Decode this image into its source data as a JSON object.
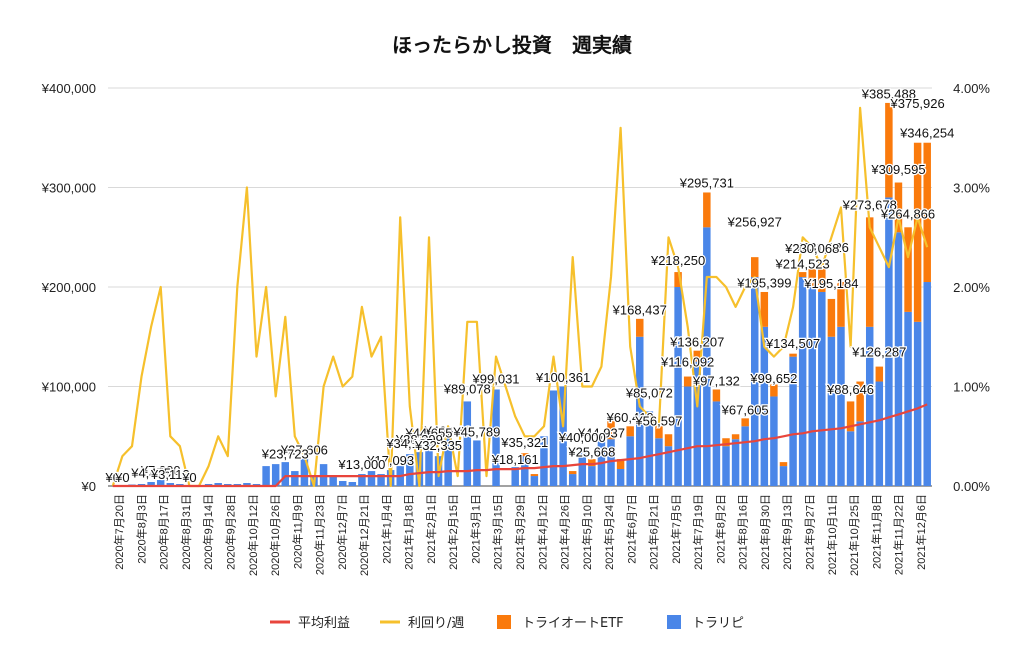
{
  "chart_data": {
    "type": "bar",
    "stacked": true,
    "title": "ほったらかし投資　週実績",
    "xlabel": "",
    "ylabel": "",
    "ylim": [
      0,
      400000
    ],
    "y2lim": [
      0,
      4.0
    ],
    "y_ticks": [
      "¥0",
      "¥100,000",
      "¥200,000",
      "¥300,000",
      "¥400,000"
    ],
    "y2_ticks": [
      "0.00%",
      "1.00%",
      "2.00%",
      "3.00%",
      "4.00%"
    ],
    "grid": true,
    "legend_position": "bottom",
    "legend": [
      {
        "name": "平均利益",
        "color": "#e8453c",
        "kind": "line"
      },
      {
        "name": "利回り/週",
        "color": "#f6c02c",
        "kind": "line"
      },
      {
        "name": "トライオートETF",
        "color": "#fa7a0c",
        "kind": "bar"
      },
      {
        "name": "トラリピ",
        "color": "#4a86e8",
        "kind": "bar"
      }
    ],
    "x_tick_labels": [
      "2020年7月20日",
      "2020年8月3日",
      "2020年8月17日",
      "2020年8月31日",
      "2020年9月14日",
      "2020年9月28日",
      "2020年10月12日",
      "2020年10月26日",
      "2020年11月9日",
      "2020年11月23日",
      "2020年12月7日",
      "2020年12月21日",
      "2021年1月4日",
      "2021年1月18日",
      "2021年2月1日",
      "2021年2月15日",
      "2021年3月1日",
      "2021年3月15日",
      "2021年3月29日",
      "2021年4月12日",
      "2021年4月26日",
      "2021年5月10日",
      "2021年5月24日",
      "2021年6月7日",
      "2021年6月21日",
      "2021年7月5日",
      "2021年7月19日",
      "2021年8月2日",
      "2021年8月16日",
      "2021年8月30日",
      "2021年9月13日",
      "2021年9月27日",
      "2021年10月11日",
      "2021年10月25日",
      "2021年11月8日",
      "2021年11月22日",
      "2021年12月6日"
    ],
    "series": [
      {
        "name": "トラリピ",
        "values": [
          0,
          0,
          1500,
          2000,
          4000,
          6000,
          3000,
          2000,
          0,
          1000,
          2000,
          3000,
          2000,
          2000,
          3000,
          2000,
          20000,
          22000,
          24000,
          15000,
          28000,
          10000,
          22000,
          10000,
          5000,
          4000,
          12000,
          15000,
          12000,
          16000,
          20000,
          32000,
          34000,
          44000,
          30000,
          48000,
          0,
          85000,
          45789,
          0,
          97000,
          0,
          19000,
          30000,
          10000,
          50000,
          96000,
          100000,
          12000,
          35000,
          20000,
          44655,
          47000,
          17093,
          50000,
          150000,
          75000,
          48000,
          40000,
          200000,
          100000,
          125000,
          260000,
          85000,
          40000,
          47000,
          60000,
          210000,
          160000,
          90000,
          20000,
          130000,
          210000,
          200000,
          195000,
          150000,
          160000,
          55000,
          65000,
          160000,
          105000,
          290000,
          255000,
          175000,
          165000,
          205000
        ]
      },
      {
        "name": "トライオートETF",
        "values": [
          0,
          0,
          0,
          0,
          0,
          0,
          0,
          0,
          0,
          0,
          0,
          0,
          0,
          0,
          0,
          0,
          0,
          0,
          0,
          0,
          0,
          0,
          0,
          0,
          0,
          0,
          0,
          0,
          0,
          0,
          0,
          0,
          0,
          0,
          0,
          0,
          0,
          0,
          0,
          0,
          0,
          0,
          0,
          3000,
          2000,
          0,
          0,
          0,
          3000,
          0,
          7000,
          0,
          20000,
          10000,
          10000,
          18000,
          0,
          12000,
          12000,
          15000,
          10000,
          11000,
          35000,
          12000,
          8000,
          5000,
          8000,
          20000,
          35000,
          12000,
          4000,
          3000,
          5000,
          18000,
          30000,
          38000,
          45000,
          30000,
          40000,
          110000,
          15000,
          95000,
          50000,
          85000,
          180000,
          140000
        ]
      },
      {
        "name": "利回り/週",
        "values": [
          0.0,
          0.3,
          0.4,
          1.1,
          1.6,
          2.0,
          0.5,
          0.4,
          0.0,
          0.0,
          0.2,
          0.5,
          0.3,
          2.0,
          3.0,
          1.3,
          2.0,
          0.9,
          1.7,
          0.5,
          0.3,
          0.0,
          1.0,
          1.3,
          1.0,
          1.1,
          1.8,
          1.3,
          1.5,
          0.0,
          2.7,
          0.8,
          0.0,
          2.5,
          0.1,
          0.6,
          0.1,
          1.65,
          1.65,
          0.1,
          1.3,
          1.0,
          0.7,
          0.5,
          0.5,
          0.6,
          1.3,
          0.6,
          2.3,
          1.0,
          1.0,
          1.2,
          2.1,
          3.6,
          1.4,
          0.8,
          0.7,
          0.6,
          2.5,
          2.2,
          1.6,
          0.8,
          2.1,
          2.1,
          2.0,
          1.8,
          2.0,
          2.1,
          1.4,
          1.3,
          1.4,
          1.8,
          2.5,
          2.4,
          2.2,
          2.5,
          2.8,
          1.4,
          3.8,
          2.6,
          2.4,
          2.2,
          2.7,
          2.3,
          2.7,
          2.4
        ]
      },
      {
        "name": "平均利益",
        "values": [
          0,
          0,
          0,
          0,
          0,
          0,
          0,
          0,
          0,
          0,
          0,
          0,
          0,
          0,
          0,
          0,
          0,
          0,
          0.1,
          0.1,
          0.1,
          0.1,
          0.1,
          0.1,
          0.1,
          0.1,
          0.1,
          0.1,
          0.1,
          0.1,
          0.1,
          0.12,
          0.13,
          0.14,
          0.14,
          0.15,
          0.15,
          0.15,
          0.16,
          0.16,
          0.17,
          0.17,
          0.17,
          0.18,
          0.18,
          0.19,
          0.2,
          0.2,
          0.21,
          0.22,
          0.22,
          0.23,
          0.25,
          0.26,
          0.27,
          0.28,
          0.3,
          0.32,
          0.34,
          0.36,
          0.38,
          0.4,
          0.4,
          0.41,
          0.42,
          0.43,
          0.44,
          0.45,
          0.47,
          0.48,
          0.5,
          0.52,
          0.53,
          0.55,
          0.56,
          0.57,
          0.58,
          0.6,
          0.62,
          0.64,
          0.66,
          0.69,
          0.72,
          0.75,
          0.78,
          0.82
        ]
      }
    ],
    "data_labels": [
      "¥385,488",
      "¥375,926",
      "¥346,254",
      "¥309,595",
      "¥295,731",
      "¥273,678",
      "¥264,866",
      "¥256,927",
      "¥231,126",
      "¥230,068",
      "¥218,250",
      "¥214,523",
      "¥195,399",
      "¥195,184",
      "¥168,437",
      "¥136,207",
      "¥134,507",
      "¥126,287",
      "¥116,092",
      "¥100,361",
      "¥99,652",
      "¥99,031",
      "¥97,132",
      "¥89,078",
      "¥88,646",
      "¥85,072",
      "¥67,605",
      "¥60,410",
      "¥56,597",
      "¥46,969",
      "¥45,789",
      "¥44,937",
      "¥44,655",
      "¥40,000",
      "¥38,399",
      "¥35,321",
      "¥34,185",
      "¥32,335",
      "¥27,606",
      "¥25,668",
      "¥23,723",
      "¥18,161",
      "¥17,093",
      "¥13,000",
      "¥7,000",
      "¥4,475",
      "¥3,113",
      "¥0",
      "¥0",
      "¥0"
    ]
  }
}
